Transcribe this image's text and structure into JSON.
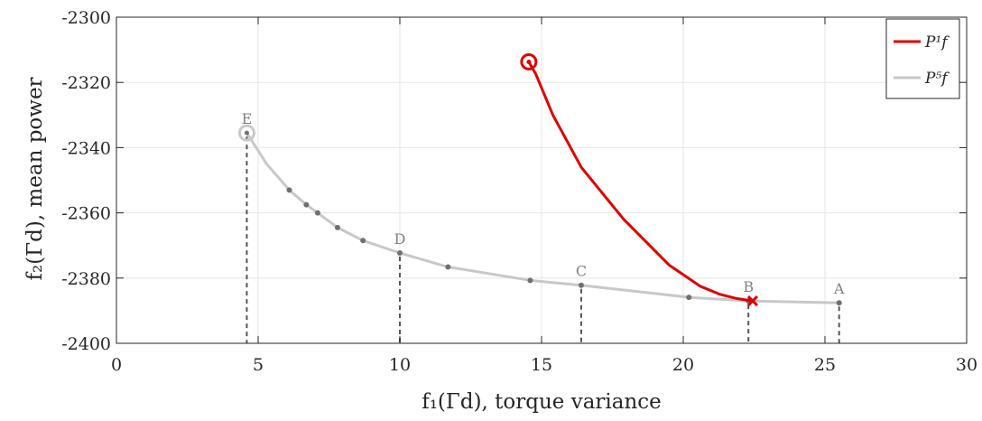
{
  "chart_data": {
    "type": "line",
    "xlabel": "f₁(Γd), torque variance",
    "ylabel": "f₂(Γd), mean power",
    "xlim": [
      0,
      30
    ],
    "ylim": [
      -2400,
      -2300
    ],
    "x_ticks": [
      "0",
      "5",
      "10",
      "15",
      "20",
      "25",
      "30"
    ],
    "y_ticks": [
      "-2400",
      "-2380",
      "-2360",
      "-2340",
      "-2320",
      "-2300"
    ],
    "x_tick_values": [
      0,
      5,
      10,
      15,
      20,
      25,
      30
    ],
    "y_tick_values": [
      -2400,
      -2380,
      -2360,
      -2340,
      -2320,
      -2300
    ],
    "grid": true,
    "legend_position": "top-right",
    "series": [
      {
        "name": "P¹f",
        "color": "#e00000",
        "x": [
          14.55,
          14.8,
          15.4,
          16.4,
          17.9,
          19.5,
          20.6,
          21.3,
          21.9,
          22.45
        ],
        "y": [
          -2313.7,
          -2317.5,
          -2330,
          -2346,
          -2362,
          -2376,
          -2382.5,
          -2385,
          -2386.3,
          -2387
        ],
        "start_marker": "circle",
        "end_marker": "x"
      },
      {
        "name": "P⁵f",
        "color": "#c8c8c8",
        "x": [
          4.6,
          5.3,
          6.1,
          6.7,
          7.1,
          7.8,
          8.7,
          10.0,
          11.7,
          14.6,
          16.4,
          20.2,
          22.3,
          25.5
        ],
        "y": [
          -2335.5,
          -2345,
          -2353,
          -2357.5,
          -2360,
          -2364.5,
          -2368.5,
          -2372.3,
          -2376.6,
          -2380.7,
          -2382.2,
          -2385.9,
          -2387,
          -2387.6
        ],
        "start_marker": "circle",
        "dot_indices": [
          2,
          3,
          4,
          5,
          6,
          7,
          8,
          9,
          10,
          11,
          12,
          13
        ]
      }
    ],
    "annotations": [
      {
        "label": "A",
        "x": 25.5,
        "y": -2387.6
      },
      {
        "label": "B",
        "x": 22.3,
        "y": -2387
      },
      {
        "label": "C",
        "x": 16.4,
        "y": -2382.2
      },
      {
        "label": "D",
        "x": 10.0,
        "y": -2372.3
      },
      {
        "label": "E",
        "x": 4.6,
        "y": -2335.5
      }
    ]
  }
}
